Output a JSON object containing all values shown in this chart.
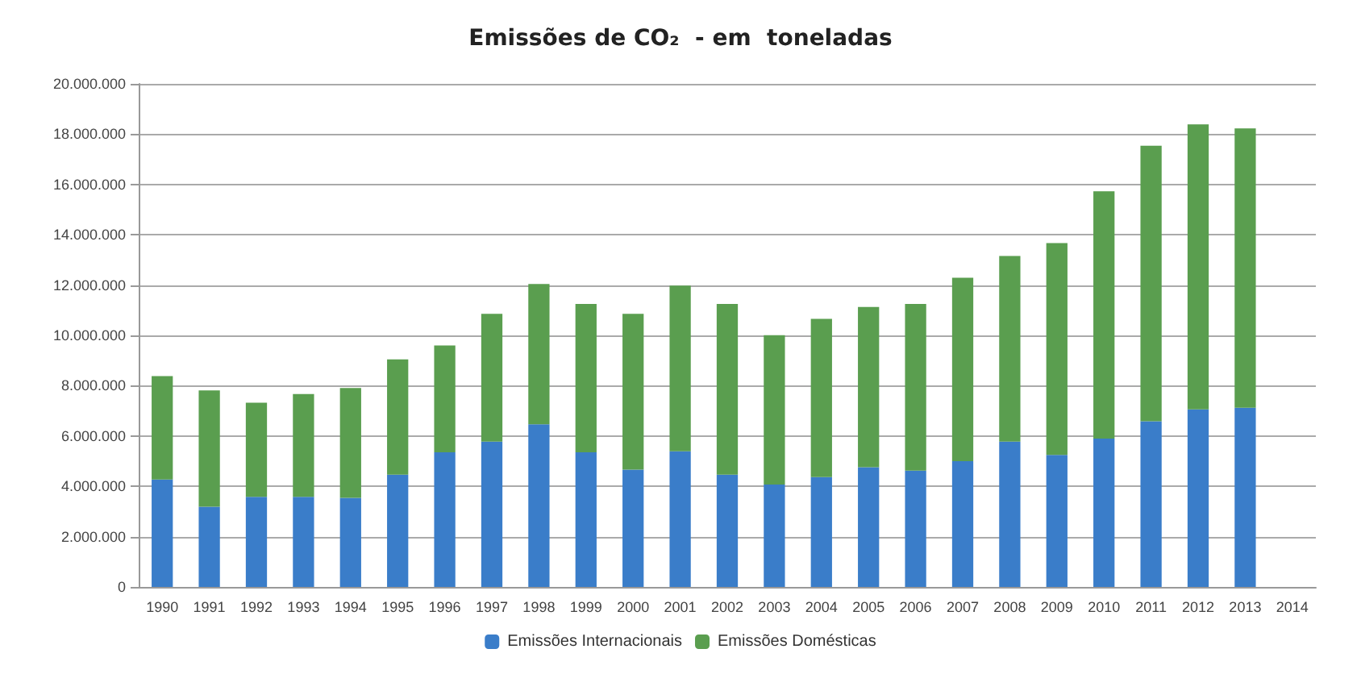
{
  "chart_data": {
    "type": "bar",
    "title": "Emissões de CO₂  - em  toneladas",
    "stacked": true,
    "categories": [
      "1990",
      "1991",
      "1992",
      "1993",
      "1994",
      "1995",
      "1996",
      "1997",
      "1998",
      "1999",
      "2000",
      "2001",
      "2002",
      "2003",
      "2004",
      "2005",
      "2006",
      "2007",
      "2008",
      "2009",
      "2010",
      "2011",
      "2012",
      "2013",
      "2014"
    ],
    "series": [
      {
        "name": "Emissões Internacionais",
        "color": "#3a7dc9",
        "values": [
          4270000,
          3190000,
          3580000,
          3580000,
          3540000,
          4460000,
          5350000,
          5780000,
          6470000,
          5350000,
          4660000,
          5390000,
          4460000,
          4070000,
          4370000,
          4760000,
          4620000,
          5000000,
          5780000,
          5250000,
          5900000,
          6590000,
          7060000,
          7120000,
          null
        ]
      },
      {
        "name": "Emissões Domésticas",
        "color": "#5a9e4f",
        "values": [
          4110000,
          4620000,
          3740000,
          4090000,
          4370000,
          4590000,
          4250000,
          5080000,
          5570000,
          5900000,
          6200000,
          6590000,
          6790000,
          5940000,
          6290000,
          6370000,
          6630000,
          7290000,
          7380000,
          8420000,
          9830000,
          10950000,
          11330000,
          11110000,
          null
        ]
      }
    ],
    "ylim": [
      0,
      20000000
    ],
    "yticks": [
      {
        "value": 0,
        "label": "0"
      },
      {
        "value": 2000000,
        "label": "2.000.000"
      },
      {
        "value": 4000000,
        "label": "4.000.000"
      },
      {
        "value": 6000000,
        "label": "6.000.000"
      },
      {
        "value": 8000000,
        "label": "8.000.000"
      },
      {
        "value": 10000000,
        "label": "10.000.000"
      },
      {
        "value": 12000000,
        "label": "12.000.000"
      },
      {
        "value": 14000000,
        "label": "14.000.000"
      },
      {
        "value": 16000000,
        "label": "16.000.000"
      },
      {
        "value": 18000000,
        "label": "18.000.000"
      },
      {
        "value": 20000000,
        "label": "20.000.000"
      }
    ],
    "grid": "y",
    "legend": "bottom"
  }
}
